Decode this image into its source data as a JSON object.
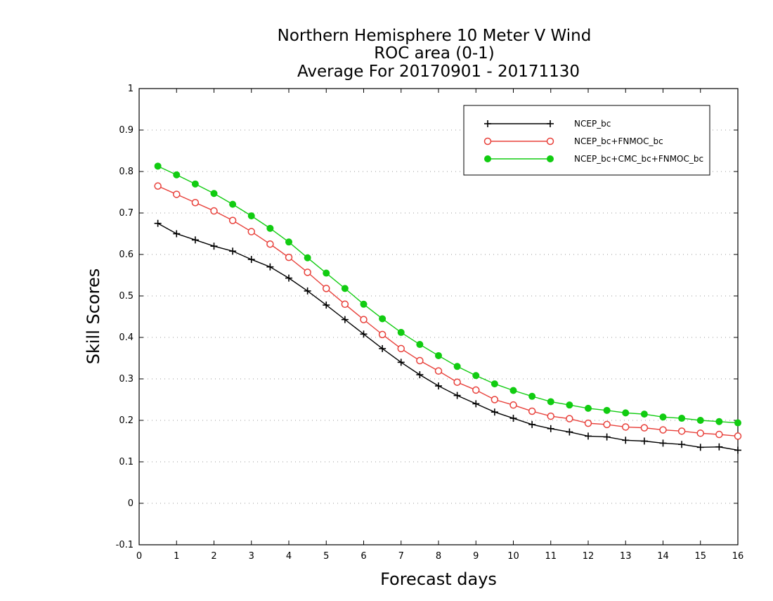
{
  "chart_data": {
    "type": "line",
    "title_lines": [
      "Northern Hemisphere 10 Meter V Wind",
      "ROC area (0-1)",
      "Average For 20170901 - 20171130"
    ],
    "xlabel": "Forecast days",
    "ylabel": "Skill Scores",
    "xlim": [
      0,
      16
    ],
    "ylim": [
      -0.1,
      1
    ],
    "x_ticks": [
      0,
      1,
      2,
      3,
      4,
      5,
      6,
      7,
      8,
      9,
      10,
      11,
      12,
      13,
      14,
      15,
      16
    ],
    "y_ticks": [
      -0.1,
      0,
      0.1,
      0.2,
      0.3,
      0.4,
      0.5,
      0.6,
      0.7,
      0.8,
      0.9,
      1
    ],
    "y_tick_labels": [
      "-0.1",
      "0",
      "0.1",
      "0.2",
      "0.3",
      "0.4",
      "0.5",
      "0.6",
      "0.7",
      "0.8",
      "0.9",
      "1"
    ],
    "grid": "dotted horizontal",
    "legend_position": "top-right",
    "x": [
      0.5,
      1,
      1.5,
      2,
      2.5,
      3,
      3.5,
      4,
      4.5,
      5,
      5.5,
      6,
      6.5,
      7,
      7.5,
      8,
      8.5,
      9,
      9.5,
      10,
      10.5,
      11,
      11.5,
      12,
      12.5,
      13,
      13.5,
      14,
      14.5,
      15,
      15.5,
      16
    ],
    "series": [
      {
        "name": "NCEP_bc",
        "color": "#000000",
        "marker": "plus",
        "values": [
          0.675,
          0.65,
          0.635,
          0.62,
          0.608,
          0.588,
          0.57,
          0.543,
          0.512,
          0.478,
          0.443,
          0.408,
          0.373,
          0.34,
          0.31,
          0.283,
          0.26,
          0.24,
          0.22,
          0.205,
          0.19,
          0.18,
          0.172,
          0.162,
          0.16,
          0.152,
          0.15,
          0.145,
          0.142,
          0.135,
          0.136,
          0.128
        ]
      },
      {
        "name": "NCEP_bc+FNMOC_bc",
        "color": "#e8403a",
        "marker": "open-circle",
        "values": [
          0.765,
          0.745,
          0.725,
          0.705,
          0.682,
          0.655,
          0.625,
          0.593,
          0.557,
          0.518,
          0.48,
          0.443,
          0.407,
          0.373,
          0.344,
          0.319,
          0.292,
          0.273,
          0.25,
          0.237,
          0.222,
          0.21,
          0.204,
          0.193,
          0.19,
          0.184,
          0.182,
          0.177,
          0.174,
          0.169,
          0.166,
          0.162
        ]
      },
      {
        "name": "NCEP_bc+CMC_bc+FNMOC_bc",
        "color": "#11cc11",
        "marker": "filled-circle",
        "values": [
          0.813,
          0.792,
          0.77,
          0.747,
          0.721,
          0.693,
          0.663,
          0.63,
          0.592,
          0.555,
          0.518,
          0.48,
          0.445,
          0.412,
          0.383,
          0.356,
          0.33,
          0.308,
          0.288,
          0.272,
          0.258,
          0.245,
          0.237,
          0.229,
          0.224,
          0.218,
          0.215,
          0.208,
          0.205,
          0.2,
          0.197,
          0.194
        ]
      }
    ]
  }
}
